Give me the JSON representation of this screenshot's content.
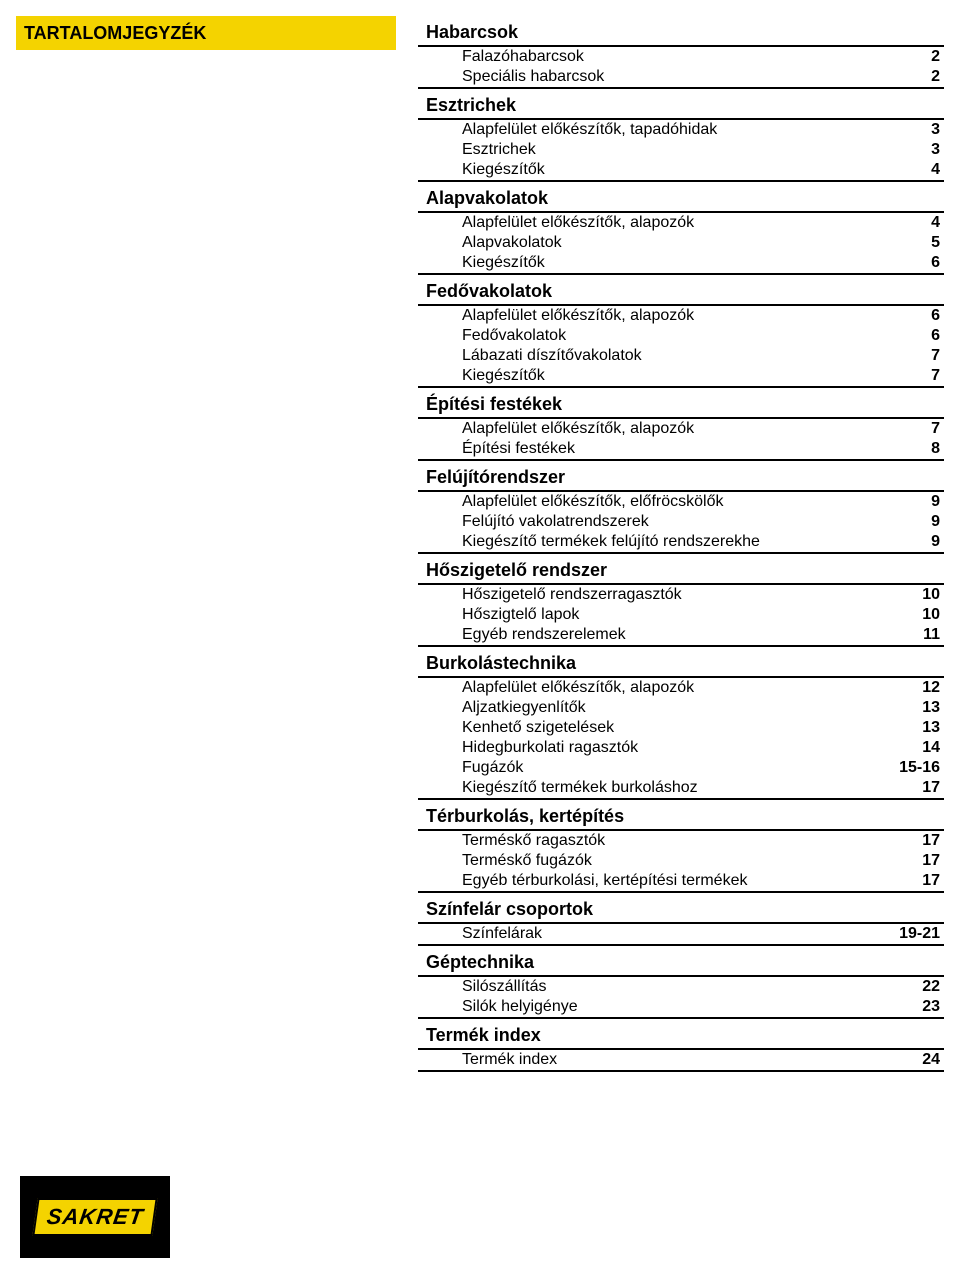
{
  "colors": {
    "accent": "#f4d300",
    "rule": "#000000",
    "text": "#000000",
    "bg": "#ffffff"
  },
  "title": "TARTALOMJEGYZÉK",
  "logo_text": "SAKRET",
  "sections": [
    {
      "title": "Habarcsok",
      "items": [
        {
          "label": "Falazóhabarcsok",
          "page": "2"
        },
        {
          "label": "Speciális habarcsok",
          "page": "2"
        }
      ]
    },
    {
      "title": "Esztrichek",
      "items": [
        {
          "label": "Alapfelület előkészítők, tapadóhidak",
          "page": "3"
        },
        {
          "label": "Esztrichek",
          "page": "3"
        },
        {
          "label": "Kiegészítők",
          "page": "4"
        }
      ]
    },
    {
      "title": "Alapvakolatok",
      "items": [
        {
          "label": "Alapfelület előkészítők, alapozók",
          "page": "4"
        },
        {
          "label": "Alapvakolatok",
          "page": "5"
        },
        {
          "label": "Kiegészítők",
          "page": "6"
        }
      ]
    },
    {
      "title": "Fedővakolatok",
      "items": [
        {
          "label": "Alapfelület előkészítők, alapozók",
          "page": "6"
        },
        {
          "label": "Fedővakolatok",
          "page": "6"
        },
        {
          "label": "Lábazati díszítővakolatok",
          "page": "7"
        },
        {
          "label": "Kiegészítők",
          "page": "7"
        }
      ]
    },
    {
      "title": "Építési festékek",
      "items": [
        {
          "label": "Alapfelület előkészítők, alapozók",
          "page": "7"
        },
        {
          "label": "Építési festékek",
          "page": "8"
        }
      ]
    },
    {
      "title": "Felújítórendszer",
      "items": [
        {
          "label": "Alapfelület előkészítők, előfröcskölők",
          "page": "9"
        },
        {
          "label": "Felújító vakolatrendszerek",
          "page": "9"
        },
        {
          "label": "Kiegészítő termékek felújító rendszerekhe",
          "page": "9"
        }
      ]
    },
    {
      "title": "Hőszigetelő rendszer",
      "items": [
        {
          "label": "Hőszigetelő rendszerragasztók",
          "page": "10"
        },
        {
          "label": "Hőszigtelő lapok",
          "page": "10"
        },
        {
          "label": "Egyéb rendszerelemek",
          "page": "11"
        }
      ]
    },
    {
      "title": "Burkolástechnika",
      "items": [
        {
          "label": "Alapfelület előkészítők, alapozók",
          "page": "12"
        },
        {
          "label": "Aljzatkiegyenlítők",
          "page": "13"
        },
        {
          "label": "Kenhető szigetelések",
          "page": "13"
        },
        {
          "label": "Hidegburkolati ragasztók",
          "page": "14"
        },
        {
          "label": "Fugázók",
          "page": "15-16"
        },
        {
          "label": "Kiegészítő termékek burkoláshoz",
          "page": "17"
        }
      ]
    },
    {
      "title": "Térburkolás, kertépítés",
      "items": [
        {
          "label": "Terméskő ragasztók",
          "page": "17"
        },
        {
          "label": "Terméskő fugázók",
          "page": "17"
        },
        {
          "label": "Egyéb térburkolási, kertépítési termékek",
          "page": "17"
        }
      ]
    },
    {
      "title": "Színfelár csoportok",
      "items": [
        {
          "label": "Színfelárak",
          "page": "19-21"
        }
      ]
    },
    {
      "title": "Géptechnika",
      "items": [
        {
          "label": "Silószállítás",
          "page": "22"
        },
        {
          "label": "Silók helyigénye",
          "page": "23"
        }
      ]
    },
    {
      "title": "Termék index",
      "items": [
        {
          "label": "Termék index",
          "page": "24"
        }
      ]
    }
  ]
}
